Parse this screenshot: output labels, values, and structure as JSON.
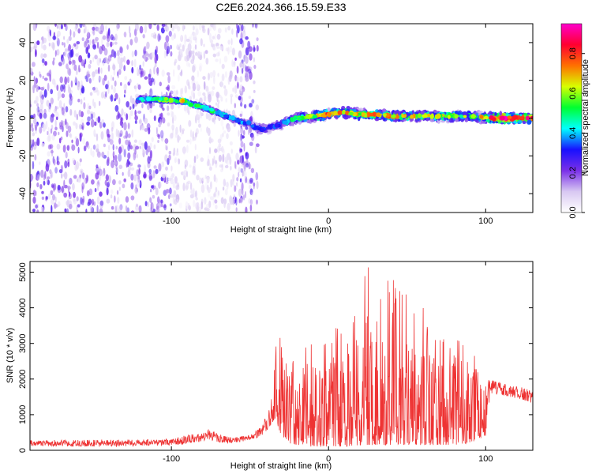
{
  "figure": {
    "title": "C2E6.2024.366.15.59.E33"
  },
  "chart_data": [
    {
      "type": "heatmap",
      "title": "C2E6.2024.366.15.59.E33",
      "xlabel": "Height of straight line (km)",
      "ylabel": "Frequency (Hz)",
      "xlim": [
        -190,
        130
      ],
      "ylim": [
        -50,
        50
      ],
      "xticks": [
        -100,
        0,
        100
      ],
      "xtick_labels": [
        "-100",
        "0",
        "100"
      ],
      "yticks": [
        -40,
        -20,
        0,
        20,
        40
      ],
      "ytick_labels": [
        "-40",
        "-20",
        "0",
        "20",
        "40"
      ],
      "colorbar": {
        "label": "Normalized spectral amplitude",
        "range": [
          0,
          0.95
        ],
        "ticks": [
          0,
          0.2,
          0.4,
          0.6,
          0.8
        ],
        "tick_labels": [
          "0.0",
          "0.2",
          "0.4",
          "0.6",
          "0.8"
        ],
        "colormap": [
          "#ffffff",
          "#d8c8f2",
          "#7a30e8",
          "#1810ff",
          "#00ffff",
          "#00ff30",
          "#d8ff00",
          "#ff7000",
          "#ff0030",
          "#ff00cc"
        ]
      },
      "ridge": {
        "x": [
          -122,
          -110,
          -100,
          -92,
          -86,
          -80,
          -74,
          -68,
          -62,
          -56,
          -50,
          -46,
          -42,
          -38,
          -34,
          -30,
          -20,
          -10,
          0,
          10,
          20,
          30,
          40,
          50,
          60,
          70,
          80,
          90,
          100,
          110,
          120,
          130
        ],
        "frequency": [
          10,
          10,
          9.5,
          9,
          7,
          6,
          4,
          2,
          0,
          -2,
          -3,
          -5,
          -6,
          -5,
          -4,
          -3,
          0,
          1,
          2,
          3,
          2,
          2,
          1,
          1,
          1,
          1,
          1,
          1,
          0,
          0,
          0,
          0
        ],
        "amplitude": [
          0.4,
          0.55,
          0.5,
          0.6,
          0.5,
          0.45,
          0.45,
          0.4,
          0.35,
          0.35,
          0.3,
          0.3,
          0.35,
          0.3,
          0.3,
          0.35,
          0.5,
          0.55,
          0.7,
          0.65,
          0.6,
          0.7,
          0.65,
          0.6,
          0.6,
          0.6,
          0.55,
          0.55,
          0.65,
          0.9,
          0.85,
          0.8
        ]
      },
      "noise_region_x": [
        -190,
        -45
      ]
    },
    {
      "type": "line",
      "series": [
        {
          "name": "SNR",
          "color": "#ee3333"
        }
      ],
      "xlabel": "Height of straight line (km)",
      "ylabel": "SNR (10 * v/v)",
      "xlim": [
        -190,
        130
      ],
      "ylim": [
        0,
        5300
      ],
      "xticks": [
        -100,
        0,
        100
      ],
      "xtick_labels": [
        "-100",
        "0",
        "100"
      ],
      "yticks": [
        0,
        1000,
        2000,
        3000,
        4000,
        5000
      ],
      "ytick_labels": [
        "0",
        "1000",
        "2000",
        "3000",
        "4000",
        "5000"
      ],
      "envelope": {
        "x": [
          -190,
          -150,
          -110,
          -95,
          -90,
          -80,
          -76,
          -70,
          -60,
          -50,
          -42,
          -37,
          -34,
          -30,
          -25,
          -20,
          -10,
          0,
          10,
          20,
          24,
          30,
          40,
          45,
          50,
          60,
          70,
          80,
          90,
          100,
          103,
          110,
          120,
          130
        ],
        "low": [
          120,
          100,
          120,
          150,
          200,
          250,
          300,
          200,
          200,
          280,
          400,
          700,
          900,
          400,
          200,
          150,
          100,
          100,
          100,
          150,
          150,
          150,
          150,
          150,
          150,
          150,
          150,
          150,
          200,
          400,
          1500,
          1550,
          1450,
          1300
        ],
        "high": [
          280,
          300,
          300,
          360,
          450,
          480,
          650,
          450,
          380,
          420,
          700,
          1300,
          3100,
          3200,
          2300,
          2800,
          3100,
          3400,
          3500,
          4000,
          5300,
          4800,
          4900,
          4700,
          4500,
          4000,
          3600,
          3200,
          3000,
          2000,
          2000,
          1900,
          1800,
          1700
        ]
      }
    }
  ]
}
